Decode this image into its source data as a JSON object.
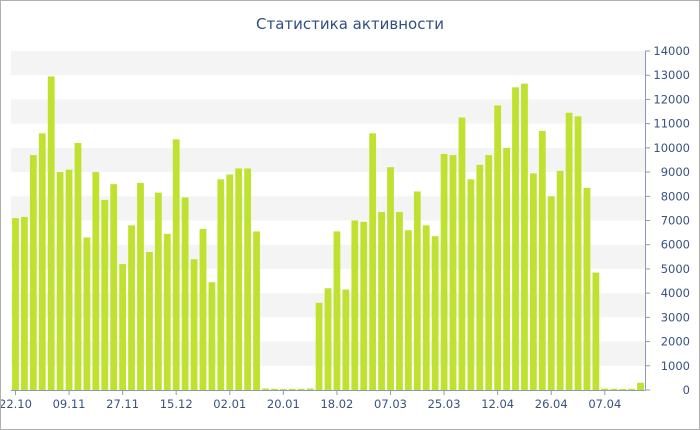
{
  "chart_data": {
    "type": "bar",
    "title": "Статистика активности",
    "xlabel": "",
    "ylabel": "",
    "ylim": [
      0,
      14000
    ],
    "y_ticks": [
      0,
      1000,
      2000,
      3000,
      4000,
      5000,
      6000,
      7000,
      8000,
      9000,
      10000,
      11000,
      12000,
      13000,
      14000
    ],
    "x_tick_labels": [
      {
        "label": "22.10",
        "index": 0
      },
      {
        "label": "09.11",
        "index": 6
      },
      {
        "label": "27.11",
        "index": 12
      },
      {
        "label": "15.12",
        "index": 18
      },
      {
        "label": "02.01",
        "index": 24
      },
      {
        "label": "20.01",
        "index": 30
      },
      {
        "label": "18.02",
        "index": 36
      },
      {
        "label": "07.03",
        "index": 42
      },
      {
        "label": "25.03",
        "index": 48
      },
      {
        "label": "12.04",
        "index": 54
      },
      {
        "label": "26.04",
        "index": 60
      },
      {
        "label": "07.04",
        "index": 66
      }
    ],
    "grid": "alternating horizontal bands",
    "bar_color": "#bfe130",
    "values": [
      7100,
      7150,
      9700,
      10600,
      12950,
      9000,
      9100,
      10200,
      6300,
      9000,
      7850,
      8500,
      5200,
      6800,
      8550,
      5700,
      8150,
      6450,
      10350,
      7950,
      5400,
      6650,
      4450,
      8700,
      8900,
      9150,
      9150,
      6550,
      60,
      50,
      40,
      50,
      50,
      60,
      3600,
      4200,
      6550,
      4150,
      7000,
      6950,
      10600,
      7350,
      9200,
      7350,
      6600,
      8200,
      6800,
      6350,
      9750,
      9700,
      11250,
      8700,
      9300,
      9700,
      11750,
      10000,
      12500,
      12650,
      8950,
      10700,
      8000,
      9050,
      11450,
      11300,
      8350,
      4850,
      60,
      50,
      40,
      50,
      300
    ]
  }
}
